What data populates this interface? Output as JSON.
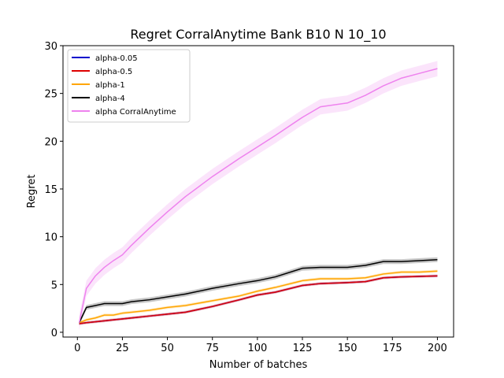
{
  "chart_data": {
    "type": "line",
    "title": "Regret CorralAnytime Bank B10 N 10_10",
    "xlabel": "Number of batches",
    "ylabel": "Regret",
    "xlim": [
      -8,
      209
    ],
    "ylim": [
      -0.5,
      30
    ],
    "xticks": [
      0,
      25,
      50,
      75,
      100,
      125,
      150,
      175,
      200
    ],
    "yticks": [
      0,
      5,
      10,
      15,
      20,
      25,
      30
    ],
    "legend_position": "upper-left",
    "grid": false,
    "x": [
      1,
      5,
      10,
      15,
      20,
      25,
      30,
      40,
      50,
      60,
      75,
      90,
      100,
      110,
      125,
      135,
      150,
      160,
      170,
      180,
      190,
      200
    ],
    "series": [
      {
        "name": "alpha-0.05",
        "color": "#0000cc",
        "values": [
          0.9,
          1.0,
          1.1,
          1.2,
          1.3,
          1.4,
          1.5,
          1.7,
          1.9,
          2.1,
          2.7,
          3.4,
          3.9,
          4.2,
          4.9,
          5.1,
          5.2,
          5.3,
          5.7,
          5.8,
          5.85,
          5.9
        ],
        "band": 0.1
      },
      {
        "name": "alpha-0.5",
        "color": "#dd0000",
        "values": [
          0.9,
          1.0,
          1.1,
          1.2,
          1.3,
          1.4,
          1.5,
          1.7,
          1.9,
          2.1,
          2.7,
          3.4,
          3.9,
          4.2,
          4.9,
          5.1,
          5.2,
          5.3,
          5.7,
          5.8,
          5.85,
          5.9
        ],
        "band": 0.15
      },
      {
        "name": "alpha-1",
        "color": "#ffa500",
        "values": [
          1.0,
          1.3,
          1.5,
          1.8,
          1.8,
          2.0,
          2.1,
          2.3,
          2.6,
          2.8,
          3.3,
          3.8,
          4.3,
          4.7,
          5.4,
          5.6,
          5.6,
          5.7,
          6.1,
          6.3,
          6.3,
          6.4
        ],
        "band": 0.15
      },
      {
        "name": "alpha-4",
        "color": "#000000",
        "values": [
          1.0,
          2.6,
          2.8,
          3.0,
          3.0,
          3.0,
          3.2,
          3.4,
          3.7,
          4.0,
          4.6,
          5.1,
          5.4,
          5.8,
          6.7,
          6.8,
          6.8,
          7.0,
          7.4,
          7.4,
          7.5,
          7.6
        ],
        "band": 0.25
      },
      {
        "name": "alpha CorralAnytime",
        "color": "#ee82ee",
        "values": [
          1.0,
          4.6,
          5.9,
          6.8,
          7.5,
          8.1,
          9.1,
          10.9,
          12.6,
          14.2,
          16.3,
          18.2,
          19.4,
          20.6,
          22.5,
          23.6,
          24.0,
          24.8,
          25.8,
          26.6,
          27.1,
          27.6
        ],
        "band": 0.8
      }
    ]
  }
}
